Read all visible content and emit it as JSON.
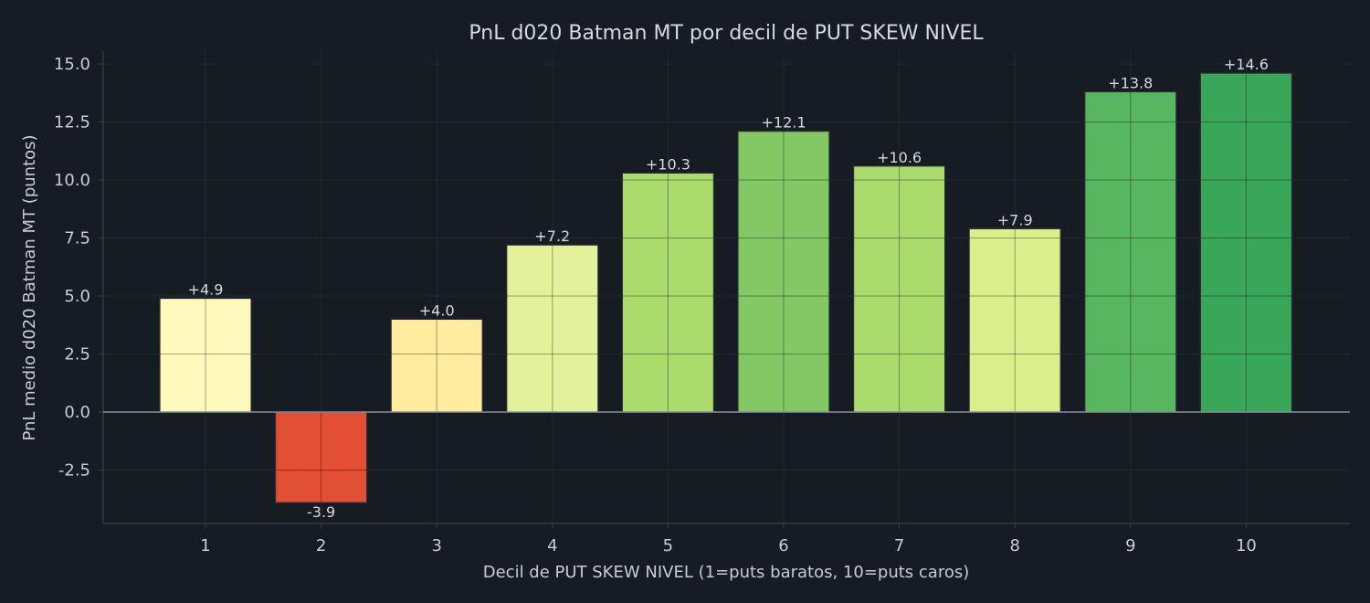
{
  "chart_data": {
    "type": "bar",
    "title": "PnL d020 Batman MT por decil de PUT SKEW NIVEL",
    "xlabel": "Decil de PUT SKEW NIVEL (1=puts baratos, 10=puts caros)",
    "ylabel": "PnL medio d020 Batman MT (puntos)",
    "categories": [
      "1",
      "2",
      "3",
      "4",
      "5",
      "6",
      "7",
      "8",
      "9",
      "10"
    ],
    "values": [
      4.9,
      -3.9,
      4.0,
      7.2,
      10.3,
      12.1,
      10.6,
      7.9,
      13.8,
      14.6
    ],
    "value_labels": [
      "+4.9",
      "-3.9",
      "+4.0",
      "+7.2",
      "+10.3",
      "+12.1",
      "+10.6",
      "+7.9",
      "+13.8",
      "+14.6"
    ],
    "bar_colors": [
      "#fff9bb",
      "#e34f35",
      "#ffec9f",
      "#e3f29a",
      "#abdb6d",
      "#83c865",
      "#abdb6d",
      "#daef8b",
      "#57b65f",
      "#3aa659"
    ],
    "ylim": [
      -4.8,
      15.55
    ],
    "yticks": [
      15.0,
      12.5,
      10.0,
      7.5,
      5.0,
      2.5,
      0.0,
      -2.5
    ],
    "ytick_labels": [
      "15.0",
      "12.5",
      "10.0",
      "7.5",
      "5.0",
      "2.5",
      "0.0",
      "-2.5"
    ],
    "grid": true,
    "colors": {
      "background": "#171b22",
      "grid": "#232833",
      "axis": "#3a3f4a",
      "zero_line": "#8a8f99",
      "bar_edge": "#2b2f36",
      "text": "#c9ccd2"
    }
  }
}
